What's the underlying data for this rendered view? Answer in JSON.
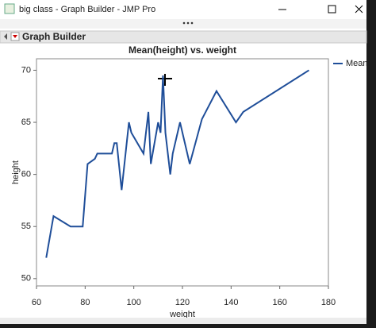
{
  "window": {
    "title": "big class - Graph Builder - JMP Pro"
  },
  "panel": {
    "title": "Graph Builder"
  },
  "chart_data": {
    "type": "line",
    "title": "Mean(height) vs. weight",
    "x_label": "weight",
    "y_label": "height",
    "x": [
      64,
      67,
      74,
      79,
      81,
      84,
      85,
      91,
      92,
      93,
      95,
      98,
      99,
      104,
      105,
      106,
      107,
      110,
      111,
      112,
      113,
      115,
      116,
      119,
      123,
      128,
      134,
      142,
      145,
      172
    ],
    "series": [
      {
        "name": "Mean",
        "color": "#1f4e99",
        "values": [
          52,
          56,
          55,
          55,
          61,
          61.5,
          62,
          62,
          63,
          63,
          58.5,
          65,
          64,
          62,
          64,
          66,
          61,
          65,
          64,
          69.5,
          64,
          60,
          62,
          65,
          61,
          65.3,
          68,
          65,
          66,
          70
        ]
      }
    ],
    "xlim": [
      60,
      180
    ],
    "xticks": [
      60,
      80,
      100,
      120,
      140,
      160,
      180
    ],
    "ylim": [
      49.3,
      71.1
    ],
    "yticks": [
      50,
      55,
      60,
      65,
      70
    ],
    "legend": "right"
  }
}
